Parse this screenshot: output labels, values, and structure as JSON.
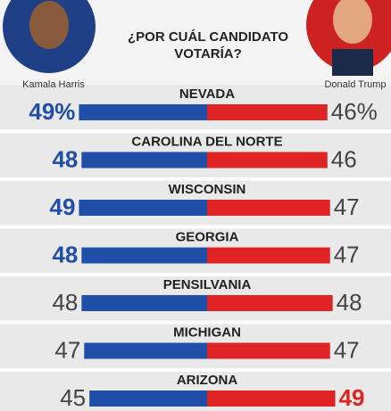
{
  "chart_data": {
    "type": "butterfly",
    "title": "¿POR CUÁL CANDIDATO VOTARÍA?",
    "categories": [
      "NEVADA",
      "CAROLINA DEL NORTE",
      "WISCONSIN",
      "GEORGIA",
      "PENSILVANIA",
      "MICHIGAN",
      "ARIZONA"
    ],
    "series": [
      {
        "name": "Kamala Harris",
        "color": "#1f4fa8",
        "values": [
          49,
          48,
          49,
          48,
          48,
          47,
          45
        ],
        "value_labels": [
          "49%",
          "48",
          "49",
          "48",
          "48",
          "47",
          "45"
        ]
      },
      {
        "name": "Donald Trump",
        "color": "#e02424",
        "values": [
          46,
          46,
          47,
          47,
          48,
          47,
          49
        ],
        "value_labels": [
          "46%",
          "46",
          "47",
          "47",
          "48",
          "47",
          "49"
        ]
      }
    ]
  }
}
